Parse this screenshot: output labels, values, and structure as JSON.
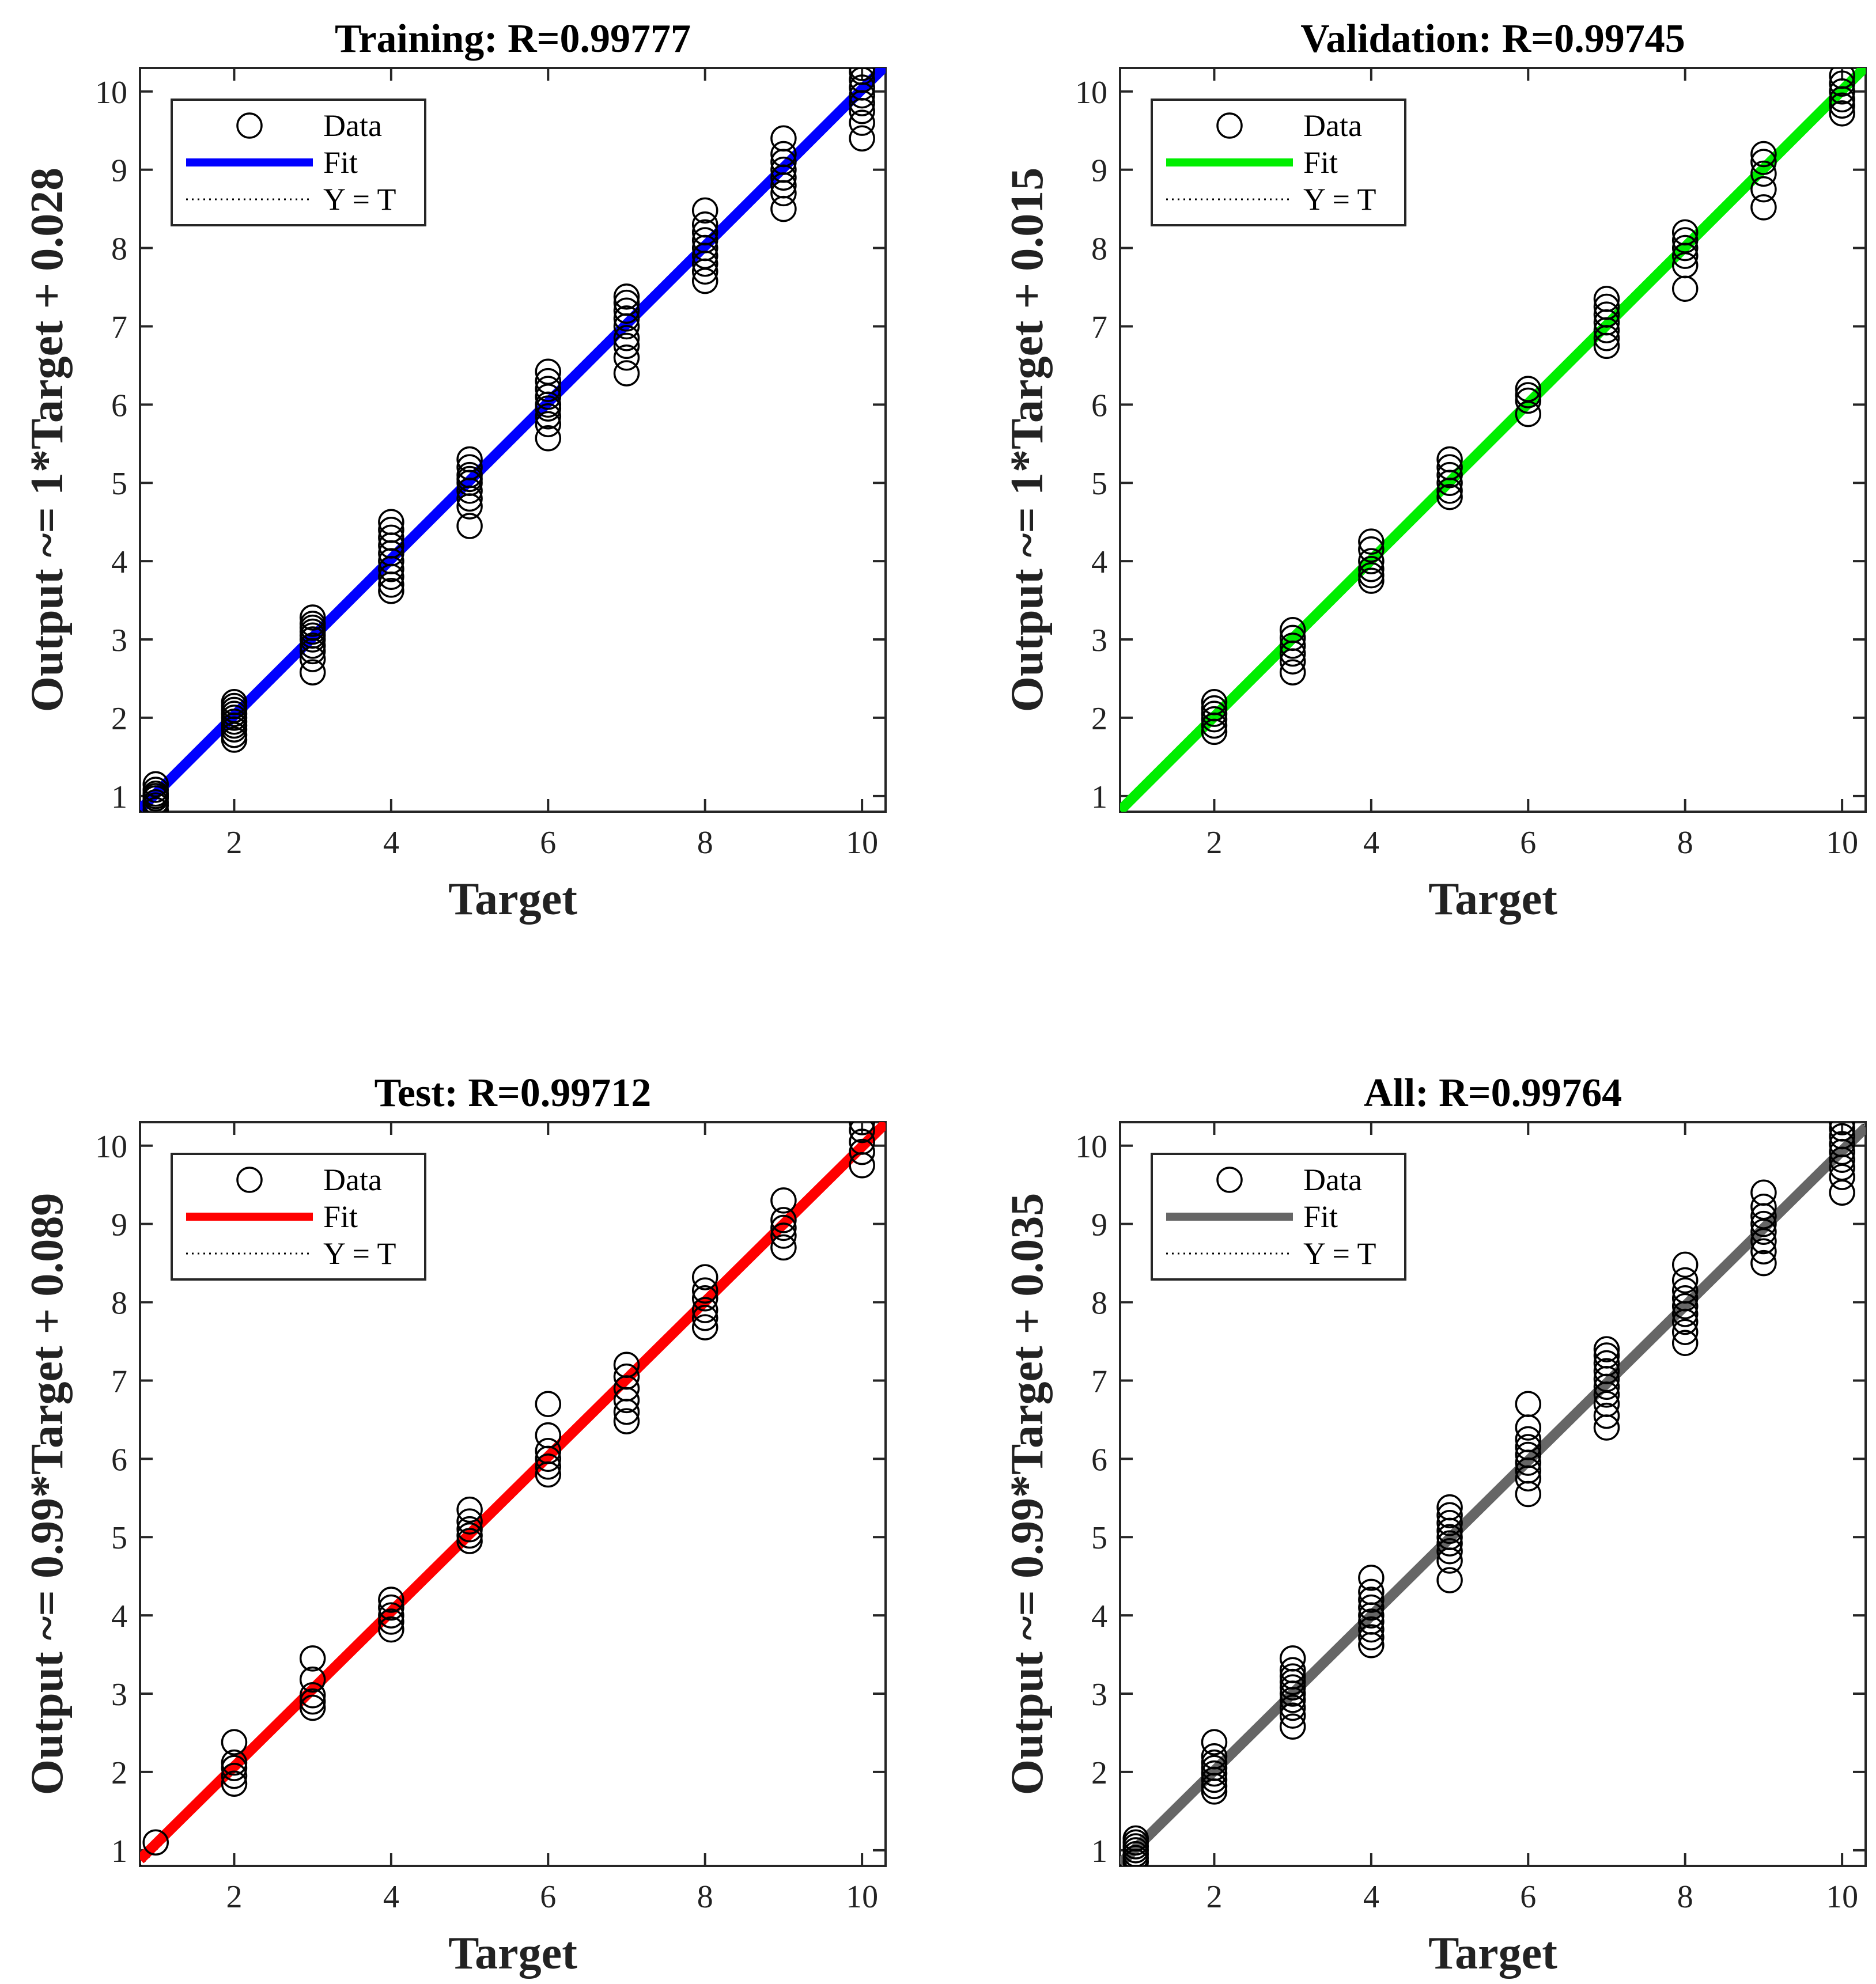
{
  "chart_data": [
    {
      "type": "scatter",
      "title": "Training: R=0.99777",
      "xlabel": "Target",
      "ylabel": "Output ~= 1*Target + 0.028",
      "xlim": [
        0.8,
        10.3
      ],
      "ylim": [
        0.8,
        10.3
      ],
      "xticks": [
        "2",
        "4",
        "6",
        "8",
        "10"
      ],
      "yticks": [
        "1",
        "2",
        "3",
        "4",
        "5",
        "6",
        "7",
        "8",
        "9",
        "10"
      ],
      "fit": {
        "slope": 1.0,
        "intercept": 0.028,
        "color": "#0000ff"
      },
      "legend": {
        "position": "top-left",
        "entries": [
          "Data",
          "Fit",
          "Y = T"
        ]
      },
      "points": [
        {
          "x": 1,
          "y": [
            0.82,
            0.88,
            0.92,
            0.97,
            1.0,
            1.03,
            1.08,
            1.15
          ]
        },
        {
          "x": 2,
          "y": [
            1.72,
            1.78,
            1.85,
            1.9,
            1.95,
            2.0,
            2.05,
            2.1,
            2.15,
            2.2
          ]
        },
        {
          "x": 3,
          "y": [
            2.58,
            2.75,
            2.85,
            2.92,
            3.0,
            3.05,
            3.1,
            3.15,
            3.2,
            3.28
          ]
        },
        {
          "x": 4,
          "y": [
            3.62,
            3.7,
            3.8,
            3.9,
            4.0,
            4.1,
            4.2,
            4.3,
            4.4,
            4.5
          ]
        },
        {
          "x": 5,
          "y": [
            4.45,
            4.7,
            4.8,
            4.9,
            5.0,
            5.05,
            5.1,
            5.2,
            5.3
          ]
        },
        {
          "x": 6,
          "y": [
            5.57,
            5.75,
            5.85,
            5.95,
            6.0,
            6.1,
            6.2,
            6.3,
            6.42
          ]
        },
        {
          "x": 7,
          "y": [
            6.4,
            6.6,
            6.75,
            6.85,
            7.0,
            7.1,
            7.2,
            7.3,
            7.38
          ]
        },
        {
          "x": 8,
          "y": [
            7.58,
            7.7,
            7.8,
            7.9,
            8.0,
            8.1,
            8.2,
            8.3,
            8.48
          ]
        },
        {
          "x": 9,
          "y": [
            8.5,
            8.7,
            8.8,
            8.9,
            9.0,
            9.1,
            9.2,
            9.4
          ]
        },
        {
          "x": 10,
          "y": [
            9.4,
            9.6,
            9.75,
            9.85,
            9.95,
            10.05,
            10.15,
            10.25,
            10.3
          ]
        }
      ]
    },
    {
      "type": "scatter",
      "title": "Validation: R=0.99745",
      "xlabel": "Target",
      "ylabel": "Output ~= 1*Target + 0.015",
      "xlim": [
        0.8,
        10.3
      ],
      "ylim": [
        0.8,
        10.3
      ],
      "xticks": [
        "2",
        "4",
        "6",
        "8",
        "10"
      ],
      "yticks": [
        "1",
        "2",
        "3",
        "4",
        "5",
        "6",
        "7",
        "8",
        "9",
        "10"
      ],
      "fit": {
        "slope": 1.0,
        "intercept": 0.015,
        "color": "#00ee00"
      },
      "legend": {
        "position": "top-left",
        "entries": [
          "Data",
          "Fit",
          "Y = T"
        ]
      },
      "points": [
        {
          "x": 2,
          "y": [
            1.82,
            1.9,
            1.98,
            2.05,
            2.12,
            2.2
          ]
        },
        {
          "x": 3,
          "y": [
            2.58,
            2.72,
            2.82,
            2.92,
            3.02,
            3.12
          ]
        },
        {
          "x": 4,
          "y": [
            3.75,
            3.82,
            3.9,
            4.0,
            4.15,
            4.25
          ]
        },
        {
          "x": 5,
          "y": [
            4.82,
            4.9,
            5.0,
            5.1,
            5.2,
            5.3
          ]
        },
        {
          "x": 6,
          "y": [
            5.88,
            6.05,
            6.12,
            6.2
          ]
        },
        {
          "x": 7,
          "y": [
            6.75,
            6.85,
            6.95,
            7.05,
            7.15,
            7.25,
            7.35
          ]
        },
        {
          "x": 8,
          "y": [
            7.48,
            7.78,
            7.9,
            8.0,
            8.1,
            8.2
          ]
        },
        {
          "x": 9,
          "y": [
            8.52,
            8.75,
            8.95,
            9.1,
            9.2
          ]
        },
        {
          "x": 10,
          "y": [
            9.72,
            9.82,
            9.9,
            10.0,
            10.1,
            10.2
          ]
        }
      ]
    },
    {
      "type": "scatter",
      "title": "Test: R=0.99712",
      "xlabel": "Target",
      "ylabel": "Output ~= 0.99*Target + 0.089",
      "xlim": [
        0.8,
        10.3
      ],
      "ylim": [
        0.8,
        10.3
      ],
      "xticks": [
        "2",
        "4",
        "6",
        "8",
        "10"
      ],
      "yticks": [
        "1",
        "2",
        "3",
        "4",
        "5",
        "6",
        "7",
        "8",
        "9",
        "10"
      ],
      "fit": {
        "slope": 0.99,
        "intercept": 0.089,
        "color": "#ff0000"
      },
      "legend": {
        "position": "top-left",
        "entries": [
          "Data",
          "Fit",
          "Y = T"
        ]
      },
      "points": [
        {
          "x": 1,
          "y": [
            1.1
          ]
        },
        {
          "x": 2,
          "y": [
            1.85,
            1.95,
            2.05,
            2.12,
            2.38
          ]
        },
        {
          "x": 3,
          "y": [
            2.82,
            2.9,
            2.98,
            3.18,
            3.45
          ]
        },
        {
          "x": 4,
          "y": [
            3.82,
            3.92,
            4.0,
            4.1,
            4.2
          ]
        },
        {
          "x": 5,
          "y": [
            4.95,
            5.02,
            5.1,
            5.2,
            5.35
          ]
        },
        {
          "x": 6,
          "y": [
            5.8,
            5.9,
            6.0,
            6.1,
            6.3,
            6.7
          ]
        },
        {
          "x": 7,
          "y": [
            6.48,
            6.6,
            6.75,
            6.9,
            7.05,
            7.2
          ]
        },
        {
          "x": 8,
          "y": [
            7.68,
            7.8,
            7.9,
            8.05,
            8.15,
            8.32
          ]
        },
        {
          "x": 9,
          "y": [
            8.7,
            8.85,
            8.95,
            9.05,
            9.3
          ]
        },
        {
          "x": 10,
          "y": [
            9.75,
            9.92,
            10.05,
            10.2,
            10.3
          ]
        }
      ]
    },
    {
      "type": "scatter",
      "title": "All: R=0.99764",
      "xlabel": "Target",
      "ylabel": "Output ~= 0.99*Target + 0.035",
      "xlim": [
        0.8,
        10.3
      ],
      "ylim": [
        0.8,
        10.3
      ],
      "xticks": [
        "2",
        "4",
        "6",
        "8",
        "10"
      ],
      "yticks": [
        "1",
        "2",
        "3",
        "4",
        "5",
        "6",
        "7",
        "8",
        "9",
        "10"
      ],
      "fit": {
        "slope": 0.99,
        "intercept": 0.035,
        "color": "#666666"
      },
      "legend": {
        "position": "top-left",
        "entries": [
          "Data",
          "Fit",
          "Y = T"
        ]
      },
      "points": [
        {
          "x": 1,
          "y": [
            0.85,
            0.9,
            0.95,
            1.0,
            1.05,
            1.1,
            1.15
          ]
        },
        {
          "x": 2,
          "y": [
            1.75,
            1.82,
            1.9,
            1.98,
            2.05,
            2.12,
            2.2,
            2.38
          ]
        },
        {
          "x": 3,
          "y": [
            2.58,
            2.72,
            2.82,
            2.92,
            3.0,
            3.08,
            3.15,
            3.22,
            3.3,
            3.45
          ]
        },
        {
          "x": 4,
          "y": [
            3.62,
            3.72,
            3.82,
            3.92,
            4.0,
            4.1,
            4.2,
            4.3,
            4.48
          ]
        },
        {
          "x": 5,
          "y": [
            4.45,
            4.7,
            4.82,
            4.92,
            5.0,
            5.08,
            5.18,
            5.28,
            5.38
          ]
        },
        {
          "x": 6,
          "y": [
            5.55,
            5.75,
            5.85,
            5.95,
            6.05,
            6.15,
            6.25,
            6.4,
            6.7
          ]
        },
        {
          "x": 7,
          "y": [
            6.4,
            6.55,
            6.7,
            6.82,
            6.92,
            7.02,
            7.12,
            7.22,
            7.32,
            7.4
          ]
        },
        {
          "x": 8,
          "y": [
            7.48,
            7.62,
            7.75,
            7.85,
            7.95,
            8.05,
            8.15,
            8.28,
            8.48
          ]
        },
        {
          "x": 9,
          "y": [
            8.5,
            8.65,
            8.78,
            8.9,
            9.0,
            9.1,
            9.22,
            9.4
          ]
        },
        {
          "x": 10,
          "y": [
            9.4,
            9.6,
            9.72,
            9.82,
            9.92,
            10.02,
            10.12,
            10.22,
            10.3
          ]
        }
      ]
    }
  ]
}
